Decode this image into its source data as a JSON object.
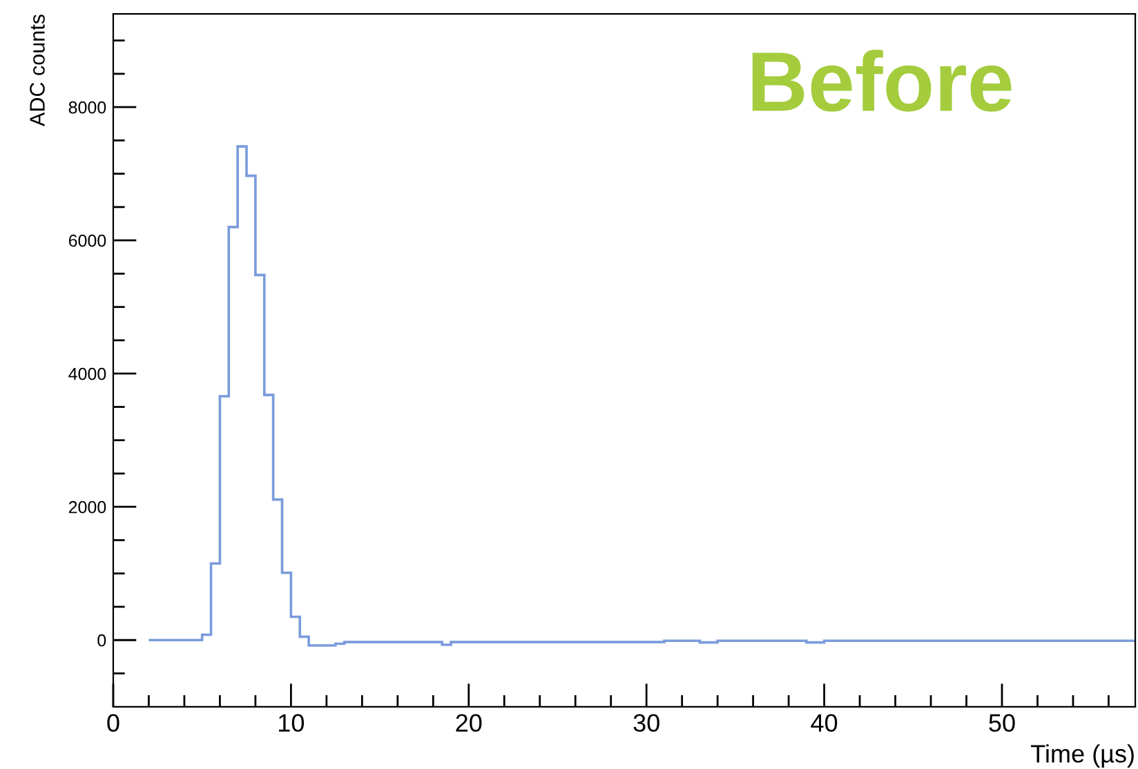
{
  "chart_data": {
    "type": "histogram",
    "xlabel": "Time (µs)",
    "ylabel": "ADC counts",
    "annotations": [
      "Before"
    ],
    "bins": [
      2,
      5,
      5.5,
      6,
      6.5,
      7,
      7.5,
      8,
      8.5,
      9,
      9.5,
      10,
      10.5,
      11,
      12.5,
      13,
      18.5,
      19,
      31,
      33,
      34,
      39,
      40,
      57.5
    ],
    "values": [
      0,
      80,
      1150,
      3660,
      6200,
      7410,
      6970,
      5480,
      3680,
      2110,
      1010,
      350,
      50,
      -80,
      -55,
      -30,
      -70,
      -30,
      -10,
      -35,
      -10,
      -35,
      -10
    ],
    "color": "#7b9bdc",
    "xlim": [
      0,
      57.5
    ],
    "xticks": [
      0,
      {
        "value": 2,
        "label": null
      },
      {
        "value": 4,
        "label": null
      },
      {
        "value": 6,
        "label": null
      },
      {
        "value": 8,
        "label": null
      },
      10,
      {
        "value": 12,
        "label": null
      },
      {
        "value": 14,
        "label": null
      },
      {
        "value": 16,
        "label": null
      },
      {
        "value": 18,
        "label": null
      },
      20,
      {
        "value": 22,
        "label": null
      },
      {
        "value": 24,
        "label": null
      },
      {
        "value": 26,
        "label": null
      },
      {
        "value": 28,
        "label": null
      },
      30,
      {
        "value": 32,
        "label": null
      },
      {
        "value": 34,
        "label": null
      },
      {
        "value": 36,
        "label": null
      },
      {
        "value": 38,
        "label": null
      },
      40,
      {
        "value": 42,
        "label": null
      },
      {
        "value": 44,
        "label": null
      },
      {
        "value": 46,
        "label": null
      },
      {
        "value": 48,
        "label": null
      },
      50,
      {
        "value": 52,
        "label": null
      },
      {
        "value": 54,
        "label": null
      },
      {
        "value": 56,
        "label": null
      }
    ],
    "ylim": [
      -1000,
      9400
    ],
    "yticks": [
      {
        "value": -500,
        "label": null
      },
      0,
      {
        "value": 500,
        "label": null
      },
      {
        "value": 1000,
        "label": null
      },
      {
        "value": 1500,
        "label": null
      },
      2000,
      {
        "value": 2500,
        "label": null
      },
      {
        "value": 3000,
        "label": null
      },
      {
        "value": 3500,
        "label": null
      },
      4000,
      {
        "value": 4500,
        "label": null
      },
      {
        "value": 5000,
        "label": null
      },
      {
        "value": 5500,
        "label": null
      },
      6000,
      {
        "value": 6500,
        "label": null
      },
      {
        "value": 7000,
        "label": null
      },
      {
        "value": 7500,
        "label": null
      },
      8000,
      {
        "value": 8500,
        "label": null
      },
      {
        "value": 9000,
        "label": null
      }
    ],
    "grid": false,
    "legend": false
  }
}
